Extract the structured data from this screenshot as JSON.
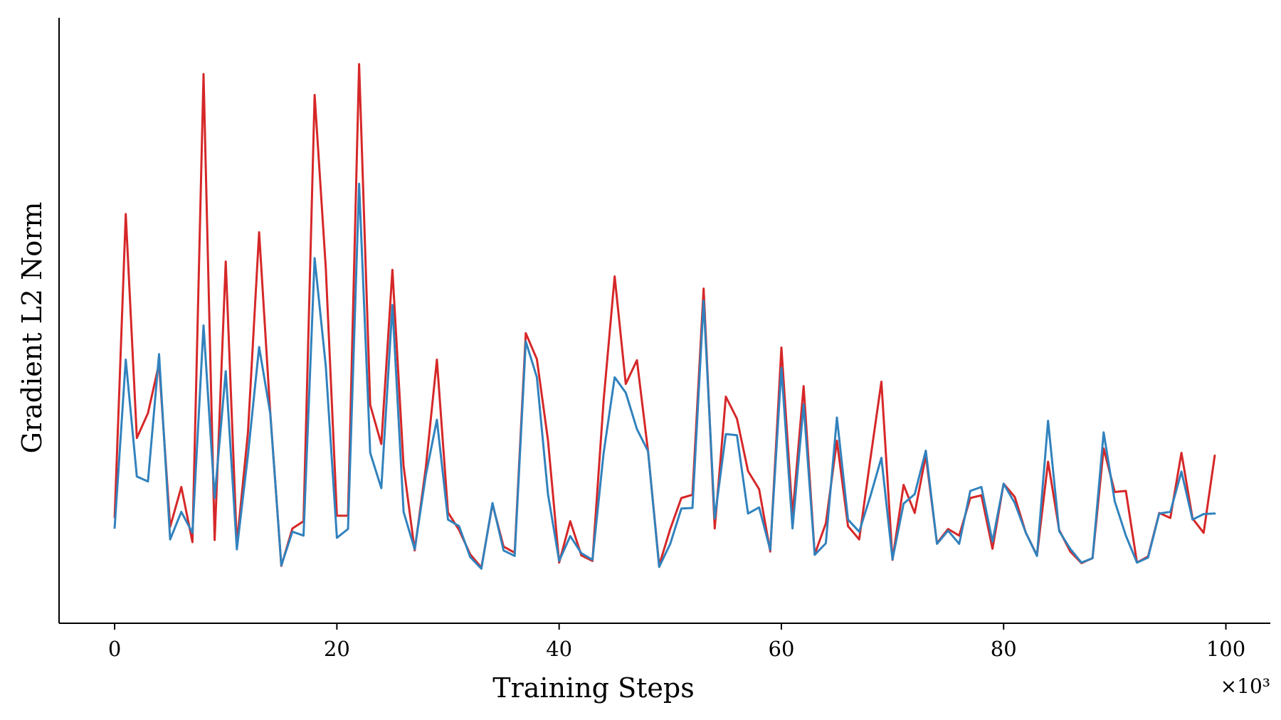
{
  "chart_data": {
    "type": "line",
    "title": "",
    "xlabel": "Training Steps",
    "ylabel": "Gradient L2 Norm",
    "x_offset_label": "×10³",
    "x_ticks": [
      0,
      20,
      40,
      60,
      80,
      100
    ],
    "x_tick_labels": [
      "0",
      "20",
      "40",
      "60",
      "80",
      "100"
    ],
    "xlim": [
      -5,
      104
    ],
    "ylim": [
      0,
      100
    ],
    "y_ticks_shown": false,
    "grid": false,
    "legend": "none",
    "x": [
      0,
      1,
      2,
      3,
      4,
      5,
      6,
      7,
      8,
      9,
      10,
      11,
      12,
      13,
      14,
      15,
      16,
      17,
      18,
      19,
      20,
      21,
      22,
      23,
      24,
      25,
      26,
      27,
      28,
      29,
      30,
      31,
      32,
      33,
      34,
      35,
      36,
      37,
      38,
      39,
      40,
      41,
      42,
      43,
      44,
      45,
      46,
      47,
      48,
      49,
      50,
      51,
      52,
      53,
      54,
      55,
      56,
      57,
      58,
      59,
      60,
      61,
      62,
      63,
      64,
      65,
      66,
      67,
      68,
      69,
      70,
      71,
      72,
      73,
      74,
      75,
      76,
      77,
      78,
      79,
      80,
      81,
      82,
      83,
      84,
      85,
      86,
      87,
      88,
      89,
      90,
      91,
      92,
      93,
      94,
      95,
      96,
      97,
      98,
      99
    ],
    "series": [
      {
        "color": "#d62728",
        "values": [
          14.3,
          69.3,
          28.7,
          33.2,
          42.2,
          12.6,
          19.8,
          9.8,
          94.7,
          10.2,
          60.7,
          9.4,
          29.7,
          66.0,
          33.4,
          5.5,
          12.3,
          13.6,
          90.9,
          59.5,
          14.6,
          14.6,
          96.5,
          34.7,
          27.6,
          59.2,
          23.6,
          8.3,
          23.3,
          42.9,
          15.2,
          12.0,
          7.6,
          5.2,
          16.7,
          9.0,
          7.9,
          47.7,
          43.0,
          28.3,
          6.1,
          13.6,
          7.4,
          6.4,
          35.4,
          58.0,
          38.5,
          42.8,
          26.3,
          5.6,
          12.2,
          17.8,
          18.4,
          55.8,
          12.3,
          36.2,
          32.2,
          22.7,
          19.4,
          8.1,
          45.1,
          14.6,
          38.1,
          7.6,
          13.2,
          28.2,
          12.7,
          10.3,
          24.8,
          38.9,
          6.6,
          20.2,
          15.1,
          25.5,
          9.6,
          12.2,
          11.0,
          17.8,
          18.3,
          8.6,
          20.4,
          18.0,
          11.5,
          7.4,
          24.4,
          12.0,
          8.1,
          6.0,
          6.9,
          26.8,
          18.9,
          19.1,
          6.1,
          7.2,
          15.1,
          14.2,
          26.0,
          14.1,
          11.5,
          25.5
        ]
      },
      {
        "color": "#3182bd",
        "values": [
          12.4,
          42.9,
          21.7,
          20.8,
          43.9,
          10.3,
          15.3,
          11.5,
          49.1,
          17.8,
          40.8,
          8.5,
          25.6,
          45.2,
          33.2,
          5.6,
          11.7,
          11.0,
          61.3,
          41.7,
          10.6,
          12.2,
          74.8,
          26.0,
          19.6,
          52.8,
          15.3,
          8.5,
          21.9,
          32.0,
          13.9,
          12.7,
          7.1,
          5.0,
          16.9,
          8.3,
          7.3,
          46.2,
          39.7,
          18.5,
          6.4,
          10.9,
          7.8,
          6.6,
          25.9,
          39.7,
          36.9,
          30.3,
          26.3,
          5.3,
          9.5,
          15.9,
          16.0,
          53.6,
          14.1,
          29.4,
          29.2,
          15.0,
          16.1,
          8.4,
          41.4,
          12.3,
          34.8,
          7.5,
          9.6,
          32.4,
          13.9,
          11.7,
          18.1,
          25.1,
          6.7,
          16.8,
          18.5,
          26.4,
          9.5,
          11.9,
          9.5,
          19.1,
          19.8,
          9.9,
          20.4,
          16.9,
          11.5,
          7.3,
          31.8,
          11.8,
          8.6,
          6.1,
          6.9,
          29.7,
          17.2,
          11.0,
          6.1,
          7.0,
          15.0,
          15.3,
          22.6,
          13.9,
          14.9,
          15.0
        ]
      }
    ]
  }
}
